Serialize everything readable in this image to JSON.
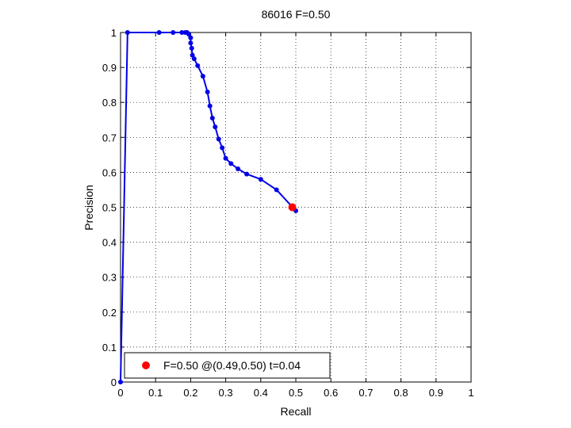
{
  "chart_data": {
    "type": "line",
    "title": "86016 F=0.50",
    "xlabel": "Recall",
    "ylabel": "Precision",
    "xlim": [
      0,
      1
    ],
    "ylim": [
      0,
      1
    ],
    "grid": true,
    "x_ticks": [
      "0",
      "0.1",
      "0.2",
      "0.3",
      "0.4",
      "0.5",
      "0.6",
      "0.7",
      "0.8",
      "0.9",
      "1"
    ],
    "y_ticks": [
      "0",
      "0.1",
      "0.2",
      "0.3",
      "0.4",
      "0.5",
      "0.6",
      "0.7",
      "0.8",
      "0.9",
      "1"
    ],
    "series": [
      {
        "color": "#0000e6",
        "points": [
          [
            0.0,
            0.0
          ],
          [
            0.02,
            1.0
          ],
          [
            0.11,
            1.0
          ],
          [
            0.15,
            1.0
          ],
          [
            0.175,
            1.0
          ],
          [
            0.185,
            1.0
          ],
          [
            0.19,
            1.0
          ],
          [
            0.195,
            0.995
          ],
          [
            0.2,
            0.985
          ],
          [
            0.2,
            0.97
          ],
          [
            0.203,
            0.955
          ],
          [
            0.205,
            0.935
          ],
          [
            0.21,
            0.925
          ],
          [
            0.22,
            0.905
          ],
          [
            0.235,
            0.875
          ],
          [
            0.248,
            0.83
          ],
          [
            0.255,
            0.79
          ],
          [
            0.262,
            0.755
          ],
          [
            0.27,
            0.73
          ],
          [
            0.28,
            0.695
          ],
          [
            0.29,
            0.67
          ],
          [
            0.3,
            0.64
          ],
          [
            0.315,
            0.625
          ],
          [
            0.335,
            0.61
          ],
          [
            0.36,
            0.595
          ],
          [
            0.4,
            0.58
          ],
          [
            0.445,
            0.55
          ],
          [
            0.5,
            0.49
          ]
        ]
      }
    ],
    "highlight": {
      "recall": 0.49,
      "precision": 0.5,
      "color": "#ff0000"
    },
    "legend": {
      "position": "bottom-left",
      "text": "F=0.50 @(0.49,0.50) t=0.04"
    }
  }
}
